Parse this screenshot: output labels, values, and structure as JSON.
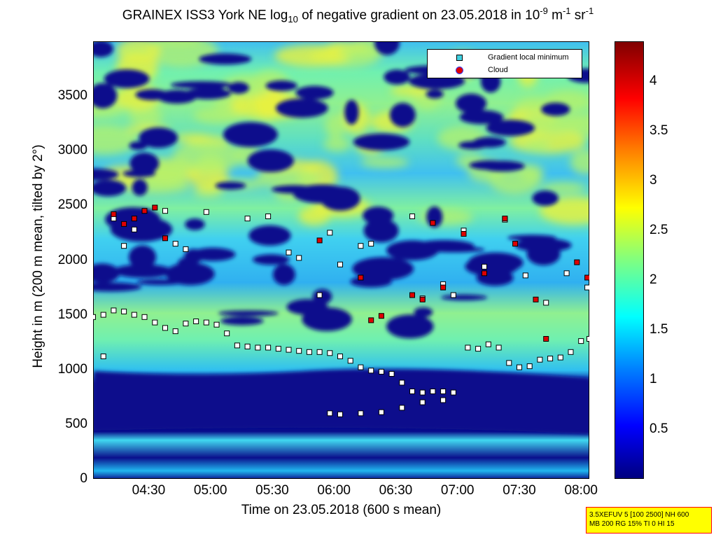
{
  "title": {
    "prefix": "GRAINEX ISS3 York NE log",
    "sub": "10",
    "middle": " of negative gradient on 23.05.2018 in 10",
    "sup1": "-9",
    "unit1": " m",
    "sup2": "-1",
    "unit2": " sr",
    "sup3": "-1"
  },
  "chart_data": {
    "type": "heatmap",
    "xlabel": "Time on 23.05.2018 (600 s mean)",
    "ylabel": "Height in m (200 m mean, tilted by 2°)",
    "xlim": [
      "04:03",
      "08:04"
    ],
    "ylim": [
      0,
      4000
    ],
    "xticks": [
      "04:30",
      "05:00",
      "05:30",
      "06:00",
      "06:30",
      "07:00",
      "07:30",
      "08:00"
    ],
    "yticks": [
      "0",
      "500",
      "1000",
      "1500",
      "2000",
      "2500",
      "3000",
      "3500"
    ],
    "colorbar": {
      "ticks": [
        "0.5",
        "1",
        "1.5",
        "2",
        "2.5",
        "3",
        "3.5",
        "4"
      ],
      "range": [
        0,
        4.4
      ],
      "colormap": "jet"
    },
    "legend": {
      "position": "top-right",
      "entries": [
        {
          "label": "Gradient local minimum",
          "marker": "square",
          "color": "#40d0e0"
        },
        {
          "label": "Cloud",
          "marker": "circle",
          "color": "#e00000"
        }
      ]
    },
    "series": [
      {
        "name": "Gradient local minimum",
        "points": [
          [
            "04:03",
            1480
          ],
          [
            "04:08",
            1500
          ],
          [
            "04:13",
            1540
          ],
          [
            "04:18",
            1530
          ],
          [
            "04:23",
            1500
          ],
          [
            "04:28",
            1480
          ],
          [
            "04:33",
            1430
          ],
          [
            "04:38",
            1380
          ],
          [
            "04:43",
            1350
          ],
          [
            "04:48",
            1420
          ],
          [
            "04:53",
            1440
          ],
          [
            "04:58",
            1430
          ],
          [
            "05:03",
            1410
          ],
          [
            "05:08",
            1330
          ],
          [
            "05:13",
            1220
          ],
          [
            "05:18",
            1210
          ],
          [
            "05:23",
            1200
          ],
          [
            "05:28",
            1200
          ],
          [
            "05:33",
            1190
          ],
          [
            "05:38",
            1180
          ],
          [
            "05:43",
            1170
          ],
          [
            "05:48",
            1160
          ],
          [
            "05:53",
            1160
          ],
          [
            "05:58",
            1150
          ],
          [
            "06:03",
            1120
          ],
          [
            "06:08",
            1080
          ],
          [
            "06:13",
            1020
          ],
          [
            "06:18",
            990
          ],
          [
            "06:23",
            980
          ],
          [
            "06:28",
            960
          ],
          [
            "06:33",
            880
          ],
          [
            "06:38",
            800
          ],
          [
            "06:43",
            790
          ],
          [
            "06:48",
            800
          ],
          [
            "06:53",
            800
          ],
          [
            "06:58",
            790
          ],
          [
            "07:05",
            1200
          ],
          [
            "07:10",
            1190
          ],
          [
            "07:15",
            1230
          ],
          [
            "07:20",
            1200
          ],
          [
            "07:25",
            1060
          ],
          [
            "07:30",
            1020
          ],
          [
            "07:35",
            1030
          ],
          [
            "07:40",
            1090
          ],
          [
            "07:45",
            1100
          ],
          [
            "07:50",
            1110
          ],
          [
            "07:55",
            1160
          ],
          [
            "08:00",
            1260
          ],
          [
            "08:04",
            1280
          ],
          [
            "04:08",
            1120
          ],
          [
            "04:13",
            2380
          ],
          [
            "04:18",
            2130
          ],
          [
            "04:23",
            2280
          ],
          [
            "04:38",
            2450
          ],
          [
            "04:43",
            2150
          ],
          [
            "04:48",
            2100
          ],
          [
            "04:58",
            2440
          ],
          [
            "05:18",
            2380
          ],
          [
            "05:28",
            2400
          ],
          [
            "05:38",
            2070
          ],
          [
            "05:43",
            2020
          ],
          [
            "05:53",
            1680
          ],
          [
            "05:58",
            2250
          ],
          [
            "06:03",
            1960
          ],
          [
            "06:13",
            2130
          ],
          [
            "06:18",
            2150
          ],
          [
            "06:38",
            2400
          ],
          [
            "06:43",
            1650
          ],
          [
            "06:53",
            1780
          ],
          [
            "06:58",
            1680
          ],
          [
            "07:03",
            2270
          ],
          [
            "07:13",
            1940
          ],
          [
            "07:23",
            2370
          ],
          [
            "07:33",
            1860
          ],
          [
            "07:43",
            1610
          ],
          [
            "07:53",
            1880
          ],
          [
            "08:03",
            1750
          ],
          [
            "05:58",
            600
          ],
          [
            "06:03",
            590
          ],
          [
            "06:13",
            600
          ],
          [
            "06:23",
            610
          ],
          [
            "06:33",
            650
          ],
          [
            "06:43",
            700
          ],
          [
            "06:53",
            720
          ]
        ]
      },
      {
        "name": "Cloud",
        "points": [
          [
            "04:13",
            2420
          ],
          [
            "04:18",
            2330
          ],
          [
            "04:23",
            2380
          ],
          [
            "04:28",
            2450
          ],
          [
            "04:33",
            2480
          ],
          [
            "04:38",
            2200
          ],
          [
            "05:53",
            2180
          ],
          [
            "06:13",
            1840
          ],
          [
            "06:18",
            1450
          ],
          [
            "06:23",
            1490
          ],
          [
            "06:38",
            1680
          ],
          [
            "06:43",
            1640
          ],
          [
            "06:48",
            2340
          ],
          [
            "06:53",
            1750
          ],
          [
            "07:03",
            2240
          ],
          [
            "07:13",
            1880
          ],
          [
            "07:23",
            2380
          ],
          [
            "07:28",
            2150
          ],
          [
            "07:38",
            1640
          ],
          [
            "07:43",
            1280
          ],
          [
            "07:58",
            1980
          ],
          [
            "08:03",
            1840
          ]
        ]
      }
    ]
  },
  "infobox": {
    "line1": "3.5XEFUV 5 [100 2500] NH 600",
    "line2": "MB 200 RG 15% TI 0 HI 15"
  }
}
